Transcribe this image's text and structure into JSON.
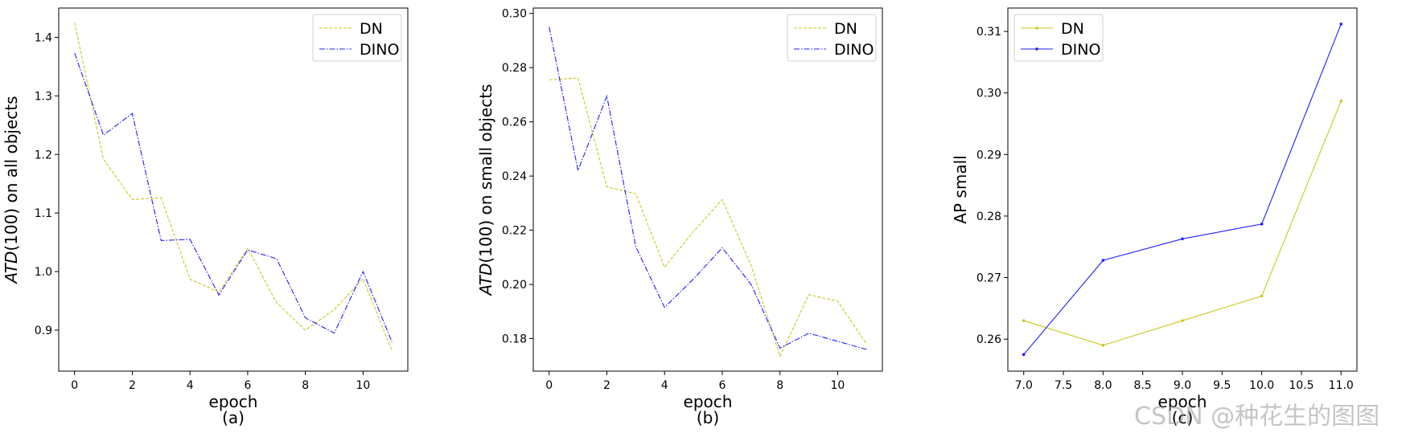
{
  "chart_data": [
    {
      "type": "line",
      "panel_label": "(a)",
      "xlabel": "epoch",
      "ylabel_italic": "ATD",
      "ylabel_rest": "(100) on all objects",
      "x": [
        0,
        1,
        2,
        3,
        4,
        5,
        6,
        7,
        8,
        9,
        10,
        11
      ],
      "xlim": [
        -0.55,
        11.55
      ],
      "ylim": [
        0.83,
        1.45
      ],
      "xticks": [
        0,
        2,
        4,
        6,
        8,
        10
      ],
      "yticks": [
        0.9,
        1.0,
        1.1,
        1.2,
        1.3,
        1.4
      ],
      "ytick_labels": [
        "0.9",
        "1.0",
        "1.1",
        "1.2",
        "1.3",
        "1.4"
      ],
      "legend_position": "upper right",
      "series": [
        {
          "name": "DN",
          "color": "#c8c81e",
          "style": "dashed",
          "values": [
            1.425,
            1.192,
            1.123,
            1.126,
            0.987,
            0.965,
            1.04,
            0.947,
            0.9,
            0.935,
            0.988,
            0.865
          ]
        },
        {
          "name": "DINO",
          "color": "#1e1eff",
          "style": "dashdot",
          "values": [
            1.373,
            1.233,
            1.27,
            1.053,
            1.055,
            0.96,
            1.037,
            1.022,
            0.921,
            0.895,
            1.0,
            0.88
          ]
        }
      ]
    },
    {
      "type": "line",
      "panel_label": "(b)",
      "xlabel": "epoch",
      "ylabel_italic": "ATD",
      "ylabel_rest": "(100) on small objects",
      "x": [
        0,
        1,
        2,
        3,
        4,
        5,
        6,
        7,
        8,
        9,
        10,
        11
      ],
      "xlim": [
        -0.55,
        11.55
      ],
      "ylim": [
        0.168,
        0.302
      ],
      "xticks": [
        0,
        2,
        4,
        6,
        8,
        10
      ],
      "yticks": [
        0.18,
        0.2,
        0.22,
        0.24,
        0.26,
        0.28,
        0.3
      ],
      "ytick_labels": [
        "0.18",
        "0.20",
        "0.22",
        "0.24",
        "0.26",
        "0.28",
        "0.30"
      ],
      "legend_position": "upper right",
      "series": [
        {
          "name": "DN",
          "color": "#c8c81e",
          "style": "dashed",
          "values": [
            0.2755,
            0.2762,
            0.236,
            0.2335,
            0.2063,
            0.2195,
            0.2313,
            0.207,
            0.1735,
            0.1962,
            0.1938,
            0.178
          ]
        },
        {
          "name": "DINO",
          "color": "#1e1eff",
          "style": "dashdot",
          "values": [
            0.295,
            0.242,
            0.2695,
            0.214,
            0.1915,
            0.202,
            0.2135,
            0.2,
            0.1765,
            0.182,
            0.179,
            0.176
          ]
        }
      ]
    },
    {
      "type": "line",
      "panel_label": "(c)",
      "xlabel": "epoch",
      "ylabel_italic": "",
      "ylabel_rest": "AP small",
      "x": [
        7.0,
        8.0,
        9.0,
        10.0,
        11.0
      ],
      "xlim": [
        6.8,
        11.2
      ],
      "ylim": [
        0.2548,
        0.3138
      ],
      "xticks": [
        7.0,
        7.5,
        8.0,
        8.5,
        9.0,
        9.5,
        10.0,
        10.5,
        11.0
      ],
      "xtick_labels": [
        "7.0",
        "7.5",
        "8.0",
        "8.5",
        "9.0",
        "9.5",
        "10.0",
        "10.5",
        "11.0"
      ],
      "yticks": [
        0.26,
        0.27,
        0.28,
        0.29,
        0.3,
        0.31
      ],
      "ytick_labels": [
        "0.26",
        "0.27",
        "0.28",
        "0.29",
        "0.30",
        "0.31"
      ],
      "legend_position": "upper left",
      "series": [
        {
          "name": "DN",
          "color": "#c8c81e",
          "style": "solid-marker",
          "values": [
            0.263,
            0.259,
            0.263,
            0.267,
            0.2987
          ]
        },
        {
          "name": "DINO",
          "color": "#1e1eff",
          "style": "solid-marker",
          "values": [
            0.2575,
            0.2728,
            0.2763,
            0.2787,
            0.3112
          ]
        }
      ]
    }
  ],
  "watermark": "CSDN @种花生的图图"
}
